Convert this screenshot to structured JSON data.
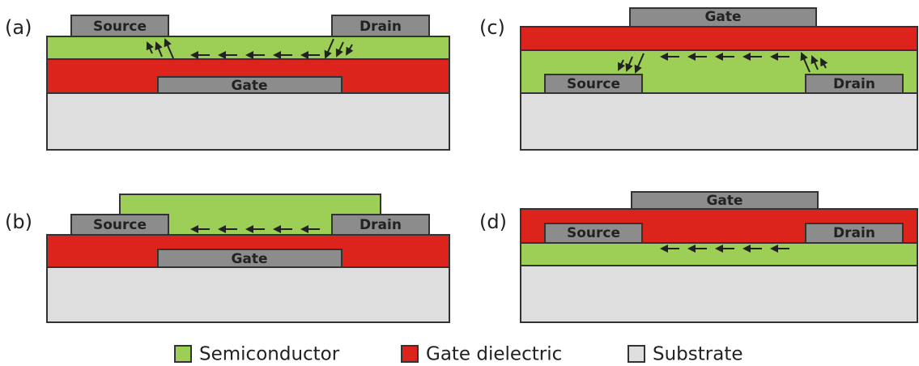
{
  "panels": [
    {
      "label": "(a)",
      "source": "Source",
      "drain": "Drain",
      "gate": "Gate"
    },
    {
      "label": "(b)",
      "source": "Source",
      "drain": "Drain",
      "gate": "Gate"
    },
    {
      "label": "(c)",
      "source": "Source",
      "drain": "Drain",
      "gate": "Gate"
    },
    {
      "label": "(d)",
      "source": "Source",
      "drain": "Drain",
      "gate": "Gate"
    }
  ],
  "legend": [
    "Semiconductor",
    "Gate dielectric",
    "Substrate"
  ]
}
